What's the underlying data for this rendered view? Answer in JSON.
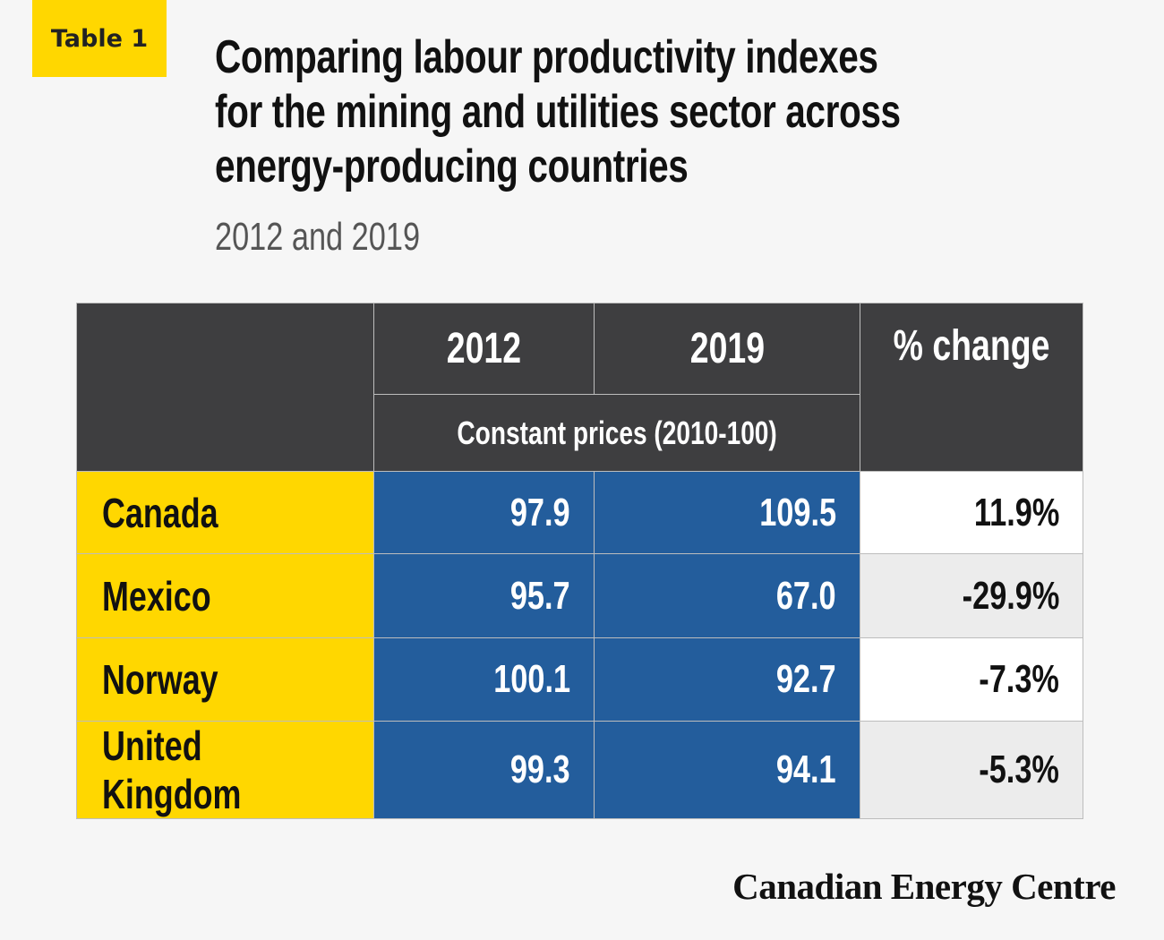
{
  "badge": "Table 1",
  "title_lines": [
    "Comparing labour productivity indexes",
    "for the mining and utilities sector across",
    "energy-producing countries"
  ],
  "subtitle": "2012 and 2019",
  "brand": "Canadian Energy Centre",
  "colors": {
    "header_bg": "#3e3e40",
    "country_bg": "#ffd700",
    "value_bg": "#235d9c",
    "stripe_bg": "#ececec"
  },
  "chart_data": {
    "type": "table",
    "columns": [
      "2012",
      "2019",
      "% change"
    ],
    "subheader": "Constant prices (2010-100)",
    "rows": [
      {
        "country": "Canada",
        "y2012": "97.9",
        "y2019": "109.5",
        "change": "11.9%"
      },
      {
        "country": "Mexico",
        "y2012": "95.7",
        "y2019": "67.0",
        "change": "-29.9%"
      },
      {
        "country": "Norway",
        "y2012": "100.1",
        "y2019": "92.7",
        "change": "-7.3%"
      },
      {
        "country": "United Kingdom",
        "y2012": "99.3",
        "y2019": "94.1",
        "change": "-5.3%"
      }
    ]
  }
}
